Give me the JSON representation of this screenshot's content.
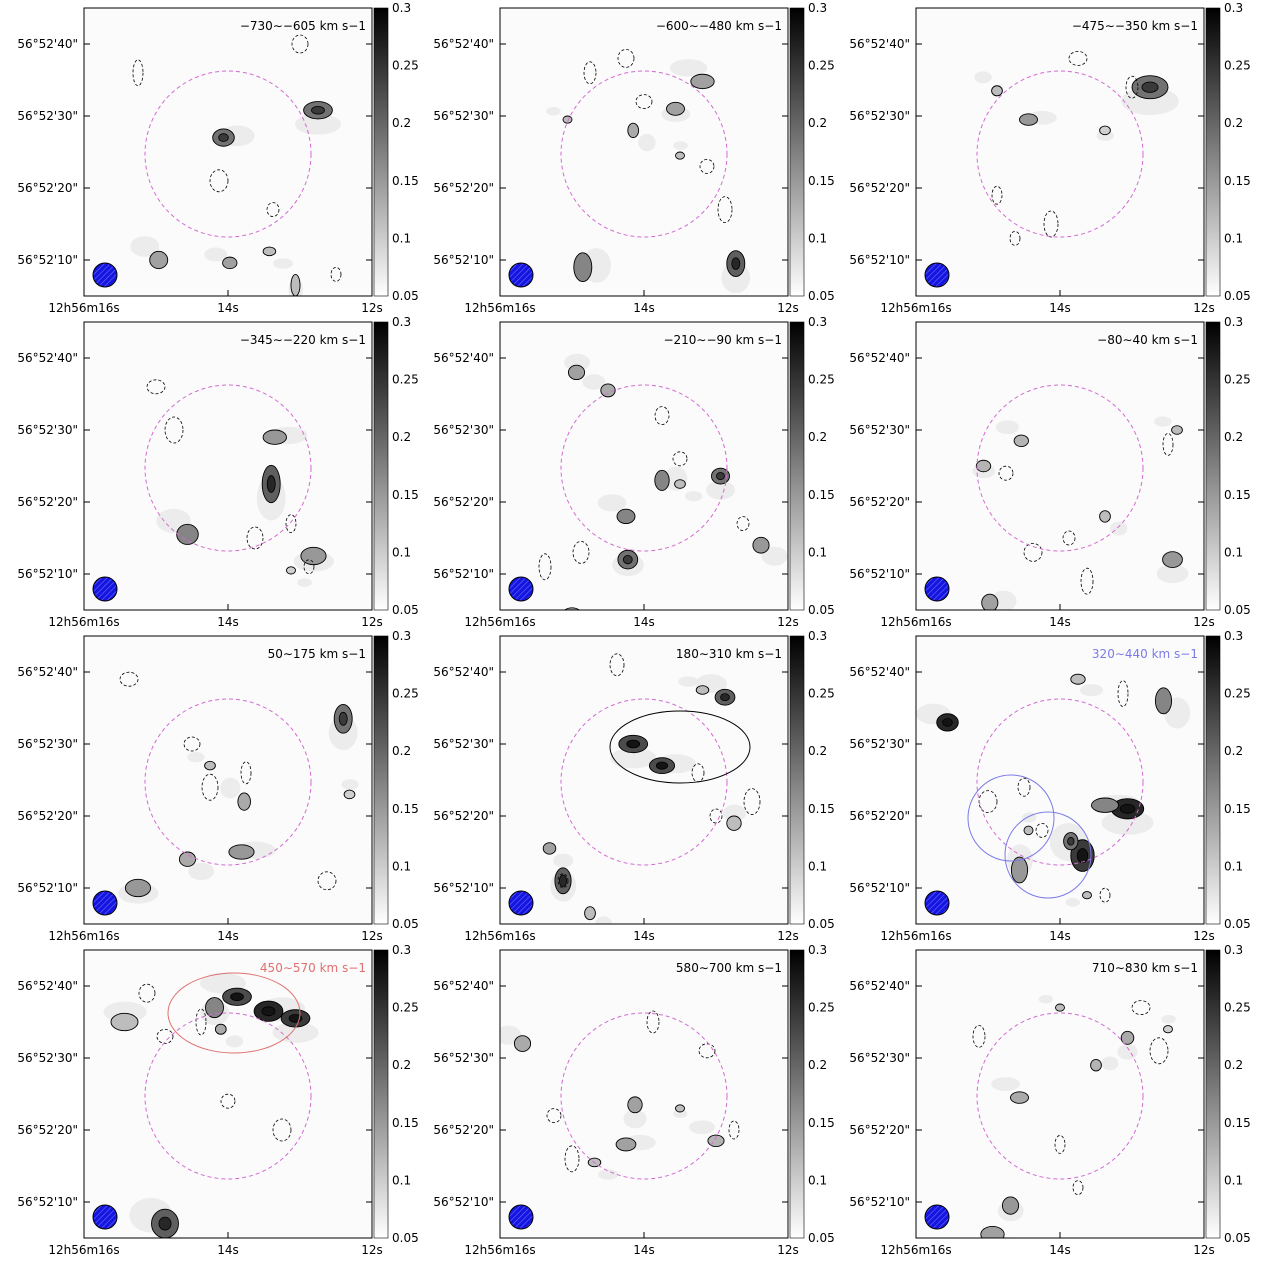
{
  "figure": {
    "colorbar_ticks": [
      "0.3",
      "0.25",
      "0.2",
      "0.15",
      "0.1",
      "0.05"
    ],
    "ra_ticks": [
      "12h56m16s",
      "14s",
      "12s"
    ],
    "dec_ticks": [
      "56°52'40\"",
      "56°52'30\"",
      "56°52'20\"",
      "56°52'10\""
    ],
    "colors": {
      "aperture": "#d46ad4",
      "beam": "#1515e0",
      "contour": "#000000",
      "highlight_blue": "#7b7be8",
      "highlight_red": "#e07070"
    }
  },
  "chart_data": [
    {
      "type": "heatmap",
      "velocity_range": "−730∼−605",
      "unit": "km s−1",
      "label_color": "#000000",
      "clim": [
        0.05,
        0.3
      ],
      "blobs": [
        [
          -10.0,
          30.8,
          1.6,
          1.2,
          0.2
        ],
        [
          0.5,
          27.0,
          1.2,
          1.2,
          0.2
        ],
        [
          7.7,
          10.0,
          1.0,
          1.2,
          0.15
        ],
        [
          -7.5,
          6.5,
          0.5,
          1.5,
          0.12
        ],
        [
          -4.6,
          11.2,
          0.7,
          0.6,
          0.12
        ],
        [
          -0.2,
          9.6,
          0.8,
          0.8,
          0.15
        ]
      ]
    },
    {
      "type": "heatmap",
      "velocity_range": "−600∼−480",
      "unit": "km s−1",
      "label_color": "#000000",
      "clim": [
        0.05,
        0.3
      ],
      "blobs": [
        [
          -10.2,
          9.5,
          1.0,
          1.8,
          0.22
        ],
        [
          6.8,
          9.0,
          1.0,
          2.0,
          0.18
        ],
        [
          -6.5,
          34.8,
          1.3,
          1.0,
          0.15
        ],
        [
          -3.5,
          31.0,
          1.0,
          0.9,
          0.15
        ],
        [
          1.2,
          28.0,
          0.6,
          1.0,
          0.14
        ],
        [
          8.5,
          29.5,
          0.5,
          0.5,
          0.12
        ],
        [
          -4.0,
          24.5,
          0.5,
          0.5,
          0.12
        ]
      ]
    },
    {
      "type": "heatmap",
      "velocity_range": "−475∼−350",
      "unit": "km s−1",
      "label_color": "#000000",
      "clim": [
        0.05,
        0.3
      ],
      "blobs": [
        [
          -10.0,
          34.0,
          2.0,
          1.6,
          0.2
        ],
        [
          3.5,
          29.5,
          1.0,
          0.8,
          0.16
        ],
        [
          7.0,
          33.5,
          0.6,
          0.7,
          0.12
        ],
        [
          -5.0,
          28.0,
          0.6,
          0.6,
          0.1
        ]
      ]
    },
    {
      "type": "heatmap",
      "velocity_range": "−345∼−220",
      "unit": "km s−1",
      "label_color": "#000000",
      "clim": [
        0.05,
        0.3
      ],
      "blobs": [
        [
          -4.8,
          22.5,
          1.0,
          2.6,
          0.22
        ],
        [
          -5.2,
          29.0,
          1.3,
          1.0,
          0.16
        ],
        [
          4.5,
          15.5,
          1.2,
          1.4,
          0.18
        ],
        [
          -9.5,
          12.5,
          1.4,
          1.2,
          0.16
        ],
        [
          -7.0,
          10.5,
          0.5,
          0.5,
          0.1
        ]
      ]
    },
    {
      "type": "heatmap",
      "velocity_range": "−210∼−90",
      "unit": "km s−1",
      "label_color": "#000000",
      "clim": [
        0.05,
        0.3
      ],
      "blobs": [
        [
          -8.5,
          23.6,
          1.0,
          1.1,
          0.2
        ],
        [
          -2.0,
          23.0,
          0.8,
          1.4,
          0.18
        ],
        [
          2.0,
          18.0,
          1.0,
          1.0,
          0.18
        ],
        [
          1.8,
          12.0,
          1.1,
          1.3,
          0.2
        ],
        [
          -4.0,
          22.5,
          0.6,
          0.6,
          0.12
        ],
        [
          4.0,
          35.5,
          0.8,
          0.9,
          0.14
        ],
        [
          7.5,
          38.0,
          0.9,
          1.0,
          0.15
        ],
        [
          -13.0,
          14.0,
          0.9,
          1.1,
          0.16
        ],
        [
          8.0,
          4.5,
          1.0,
          0.8,
          0.14
        ]
      ]
    },
    {
      "type": "heatmap",
      "velocity_range": "−80∼40",
      "unit": "km s−1",
      "label_color": "#000000",
      "clim": [
        0.05,
        0.3
      ],
      "blobs": [
        [
          -12.5,
          12.0,
          1.1,
          1.1,
          0.16
        ],
        [
          7.8,
          6.0,
          0.9,
          1.2,
          0.15
        ],
        [
          4.3,
          28.5,
          0.8,
          0.8,
          0.13
        ],
        [
          8.5,
          25.0,
          0.8,
          0.8,
          0.13
        ],
        [
          -5.0,
          18.0,
          0.6,
          0.8,
          0.12
        ],
        [
          -13.0,
          30.0,
          0.6,
          0.6,
          0.12
        ]
      ]
    },
    {
      "type": "heatmap",
      "velocity_range": "50∼175",
      "unit": "km s−1",
      "label_color": "#000000",
      "clim": [
        0.05,
        0.3
      ],
      "blobs": [
        [
          -12.8,
          33.5,
          1.0,
          2.0,
          0.2
        ],
        [
          -1.5,
          15.0,
          1.4,
          1.0,
          0.16
        ],
        [
          -1.8,
          22.0,
          0.7,
          1.2,
          0.14
        ],
        [
          10.0,
          10.0,
          1.4,
          1.2,
          0.16
        ],
        [
          4.5,
          14.0,
          0.9,
          1.0,
          0.14
        ],
        [
          2.0,
          27.0,
          0.6,
          0.6,
          0.12
        ],
        [
          -13.5,
          23.0,
          0.6,
          0.6,
          0.1
        ]
      ]
    },
    {
      "type": "heatmap",
      "velocity_range": "180∼310",
      "unit": "km s−1",
      "label_color": "#000000",
      "clim": [
        0.05,
        0.3
      ],
      "blobs": [
        [
          1.2,
          30.0,
          1.6,
          1.2,
          0.24
        ],
        [
          -2.0,
          27.0,
          1.4,
          1.1,
          0.24
        ],
        [
          -9.0,
          36.5,
          1.1,
          1.1,
          0.22
        ],
        [
          9.0,
          11.0,
          0.9,
          1.8,
          0.22
        ],
        [
          10.5,
          15.5,
          0.7,
          0.8,
          0.15
        ],
        [
          -6.5,
          37.5,
          0.7,
          0.6,
          0.12
        ],
        [
          -10.0,
          19.0,
          0.8,
          1.0,
          0.12
        ],
        [
          6.0,
          6.5,
          0.6,
          0.9,
          0.12
        ]
      ]
    },
    {
      "type": "heatmap",
      "velocity_range": "320∼440",
      "unit": "km s−1",
      "label_color": "#7b7be8",
      "clim": [
        0.05,
        0.3
      ],
      "blobs": [
        [
          -7.5,
          21.0,
          1.8,
          1.4,
          0.28
        ],
        [
          -5.0,
          21.5,
          1.5,
          1.0,
          0.18
        ],
        [
          -2.5,
          14.5,
          1.3,
          2.2,
          0.26
        ],
        [
          -1.2,
          16.5,
          0.8,
          1.2,
          0.2
        ],
        [
          -11.5,
          36.0,
          0.9,
          1.8,
          0.18
        ],
        [
          12.5,
          33.0,
          1.2,
          1.2,
          0.28
        ],
        [
          4.5,
          12.5,
          0.9,
          1.8,
          0.16
        ],
        [
          -2.0,
          39.0,
          0.8,
          0.7,
          0.12
        ],
        [
          -3.0,
          9.0,
          0.5,
          0.5,
          0.12
        ],
        [
          3.5,
          18.0,
          0.5,
          0.6,
          0.12
        ]
      ]
    },
    {
      "type": "heatmap",
      "velocity_range": "450∼570",
      "unit": "km s−1",
      "label_color": "#e07070",
      "clim": [
        0.05,
        0.3
      ],
      "blobs": [
        [
          -7.5,
          35.5,
          1.6,
          1.2,
          0.26
        ],
        [
          -4.5,
          36.5,
          1.6,
          1.4,
          0.28
        ],
        [
          -1.0,
          38.5,
          1.6,
          1.2,
          0.24
        ],
        [
          1.5,
          37.0,
          1.0,
          1.4,
          0.18
        ],
        [
          0.8,
          34.0,
          0.6,
          0.7,
          0.14
        ],
        [
          7.0,
          7.0,
          1.5,
          2.0,
          0.22
        ],
        [
          11.5,
          35.0,
          1.5,
          1.2,
          0.12
        ]
      ]
    },
    {
      "type": "heatmap",
      "velocity_range": "580∼700",
      "unit": "km s−1",
      "label_color": "#000000",
      "clim": [
        0.05,
        0.3
      ],
      "blobs": [
        [
          1.0,
          23.5,
          0.8,
          1.1,
          0.15
        ],
        [
          2.0,
          18.0,
          1.1,
          0.9,
          0.15
        ],
        [
          -8.0,
          18.5,
          0.9,
          0.8,
          0.13
        ],
        [
          -4.0,
          23.0,
          0.5,
          0.5,
          0.12
        ],
        [
          5.5,
          15.5,
          0.7,
          0.6,
          0.12
        ],
        [
          13.5,
          32.0,
          0.9,
          1.1,
          0.14
        ]
      ]
    },
    {
      "type": "heatmap",
      "velocity_range": "710∼830",
      "unit": "km s−1",
      "label_color": "#000000",
      "clim": [
        0.05,
        0.3
      ],
      "blobs": [
        [
          -7.5,
          32.8,
          0.7,
          0.9,
          0.14
        ],
        [
          -4.0,
          29.0,
          0.6,
          0.8,
          0.13
        ],
        [
          4.5,
          24.5,
          1.0,
          0.8,
          0.14
        ],
        [
          5.5,
          9.5,
          0.9,
          1.2,
          0.16
        ],
        [
          7.5,
          5.5,
          1.3,
          1.1,
          0.15
        ],
        [
          0.0,
          37.0,
          0.5,
          0.5,
          0.12
        ],
        [
          -12.0,
          34.0,
          0.5,
          0.5,
          0.1
        ]
      ]
    }
  ]
}
